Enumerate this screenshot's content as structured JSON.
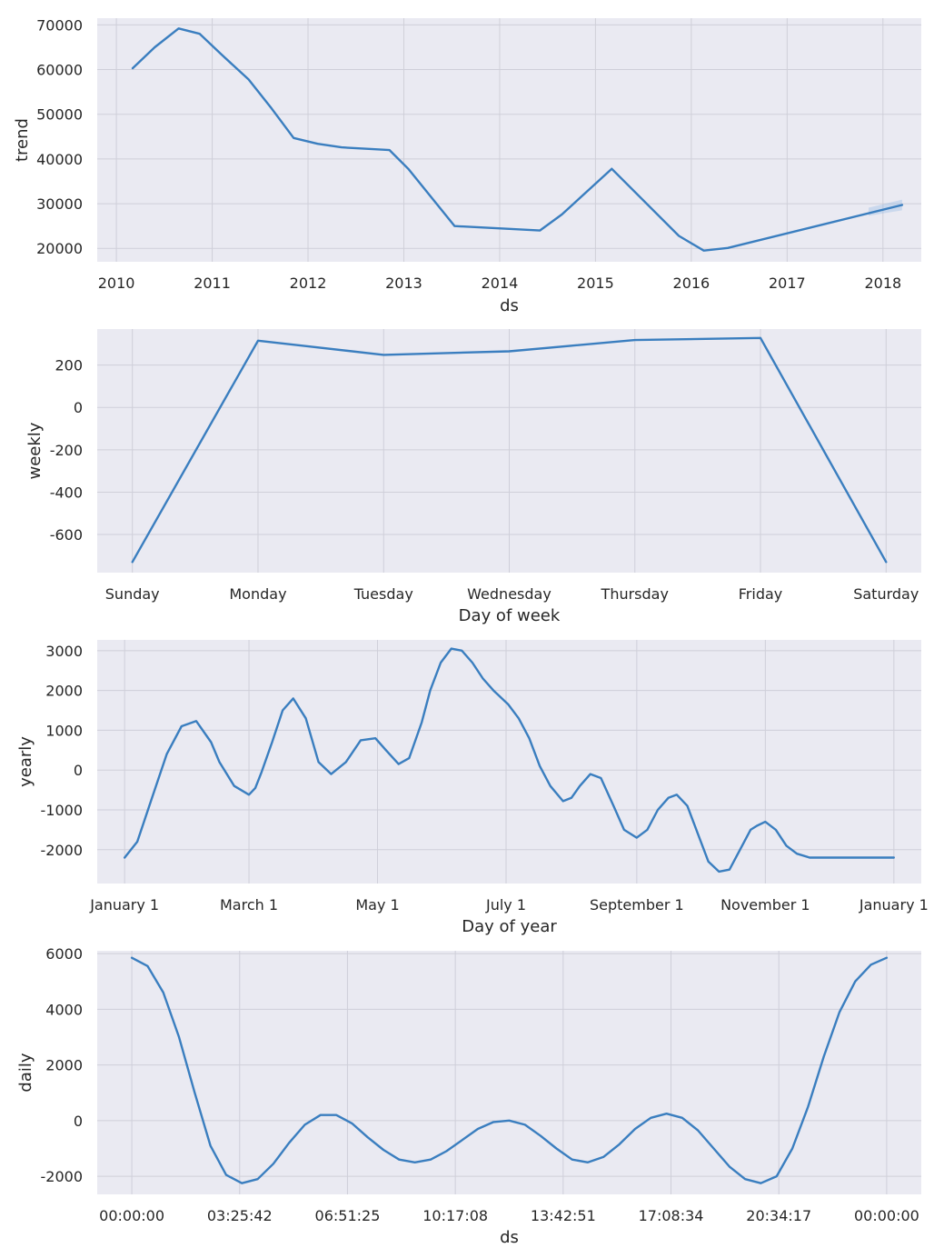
{
  "chart_data": [
    {
      "type": "line",
      "xlabel": "ds",
      "ylabel": "trend",
      "xlim": [
        2009.8,
        2018.4
      ],
      "ylim": [
        17000,
        71500
      ],
      "x_ticks": [
        2010,
        2011,
        2012,
        2013,
        2014,
        2015,
        2016,
        2017,
        2018
      ],
      "x_tick_labels": [
        "2010",
        "2011",
        "2012",
        "2013",
        "2014",
        "2015",
        "2016",
        "2017",
        "2018"
      ],
      "y_ticks": [
        20000,
        30000,
        40000,
        50000,
        60000,
        70000
      ],
      "y_tick_labels": [
        "20000",
        "30000",
        "40000",
        "50000",
        "60000",
        "70000"
      ],
      "grid": true,
      "series": [
        {
          "x": [
            2010.17,
            2010.4,
            2010.65,
            2010.87,
            2011.1,
            2011.38,
            2011.62,
            2011.85,
            2012.1,
            2012.35,
            2012.85,
            2013.05,
            2013.53,
            2014.42,
            2014.65,
            2015.17,
            2015.87,
            2016.13,
            2016.38,
            2018.2
          ],
          "y": [
            60300,
            65000,
            69200,
            68000,
            63300,
            57800,
            51300,
            44700,
            43400,
            42600,
            42000,
            37700,
            25000,
            24000,
            27600,
            37800,
            22800,
            19500,
            20100,
            29700
          ]
        }
      ],
      "uncertainty_band": {
        "x": [
          2017.85,
          2018.2
        ],
        "lower": [
          27300,
          28500
        ],
        "upper": [
          29100,
          30900
        ]
      }
    },
    {
      "type": "line",
      "xlabel": "Day of week",
      "ylabel": "weekly",
      "xlim": [
        -0.28,
        6.28
      ],
      "ylim": [
        -780,
        370
      ],
      "x_ticks": [
        0,
        1,
        2,
        3,
        4,
        5,
        6
      ],
      "x_tick_labels": [
        "Sunday",
        "Monday",
        "Tuesday",
        "Wednesday",
        "Thursday",
        "Friday",
        "Saturday"
      ],
      "y_ticks": [
        -600,
        -400,
        -200,
        0,
        200
      ],
      "y_tick_labels": [
        "-600",
        "-400",
        "-200",
        "0",
        "200"
      ],
      "grid": true,
      "series": [
        {
          "x": [
            0,
            1,
            2,
            3,
            4,
            5,
            6
          ],
          "y": [
            -730,
            315,
            248,
            265,
            318,
            328,
            -730
          ]
        }
      ]
    },
    {
      "type": "line",
      "xlabel": "Day of year",
      "ylabel": "yearly",
      "xlim": [
        -13,
        378
      ],
      "ylim": [
        -2850,
        3270
      ],
      "x_ticks": [
        0,
        59,
        120,
        181,
        243,
        304,
        365
      ],
      "x_tick_labels": [
        "January 1",
        "March 1",
        "May 1",
        "July 1",
        "September 1",
        "November 1",
        "January 1"
      ],
      "y_ticks": [
        -2000,
        -1000,
        0,
        1000,
        2000,
        3000
      ],
      "y_tick_labels": [
        "-2000",
        "-1000",
        "0",
        "1000",
        "2000",
        "3000"
      ],
      "grid": true,
      "series": [
        {
          "x": [
            0,
            6,
            13,
            20,
            27,
            34,
            41,
            45,
            52,
            59,
            62,
            65,
            70,
            75,
            80,
            86,
            92,
            98,
            105,
            112,
            119,
            124,
            130,
            135,
            141,
            145,
            150,
            155,
            160,
            165,
            170,
            175,
            179,
            182,
            187,
            192,
            197,
            202,
            208,
            212,
            216,
            221,
            226,
            232,
            237,
            243,
            248,
            253,
            258,
            262,
            267,
            272,
            277,
            282,
            287,
            292,
            297,
            300,
            304,
            309,
            314,
            319,
            325,
            330,
            336,
            341,
            346,
            351,
            356,
            361,
            365
          ],
          "y": [
            -2200,
            -1800,
            -700,
            400,
            1100,
            1230,
            700,
            200,
            -400,
            -620,
            -450,
            -50,
            700,
            1500,
            1800,
            1300,
            200,
            -100,
            200,
            750,
            800,
            500,
            150,
            300,
            1200,
            2000,
            2700,
            3050,
            3000,
            2700,
            2300,
            2000,
            1800,
            1650,
            1300,
            800,
            100,
            -400,
            -780,
            -700,
            -400,
            -100,
            -200,
            -900,
            -1500,
            -1700,
            -1500,
            -1000,
            -700,
            -620,
            -900,
            -1600,
            -2300,
            -2550,
            -2500,
            -2000,
            -1500,
            -1400,
            -1300,
            -1500,
            -1900,
            -2100,
            -2200,
            -2200,
            -2200,
            -2200,
            -2200,
            -2200,
            -2200,
            -2200,
            -2200
          ]
        }
      ]
    },
    {
      "type": "line",
      "xlabel": "ds",
      "ylabel": "daily",
      "xlim": [
        -1.1,
        25.1
      ],
      "ylim": [
        -2650,
        6100
      ],
      "x_ticks": [
        0,
        3.4286,
        6.8571,
        10.2857,
        13.7143,
        17.1429,
        20.5714,
        24
      ],
      "x_tick_labels": [
        "00:00:00",
        "03:25:42",
        "06:51:25",
        "10:17:08",
        "13:42:51",
        "17:08:34",
        "20:34:17",
        "00:00:00"
      ],
      "y_ticks": [
        -2000,
        0,
        2000,
        4000,
        6000
      ],
      "y_tick_labels": [
        "-2000",
        "0",
        "2000",
        "4000",
        "6000"
      ],
      "grid": true,
      "series": [
        {
          "x": [
            0,
            0.5,
            1,
            1.5,
            2,
            2.5,
            3,
            3.5,
            4,
            4.5,
            5,
            5.5,
            6,
            6.5,
            7,
            7.5,
            8,
            8.5,
            9,
            9.5,
            10,
            10.5,
            11,
            11.5,
            12,
            12.5,
            13,
            13.5,
            14,
            14.5,
            15,
            15.5,
            16,
            16.5,
            17,
            17.5,
            18,
            18.5,
            19,
            19.5,
            20,
            20.5,
            21,
            21.5,
            22,
            22.5,
            23,
            23.5,
            24
          ],
          "y": [
            5850,
            5550,
            4600,
            3000,
            1000,
            -900,
            -1950,
            -2250,
            -2100,
            -1550,
            -800,
            -150,
            200,
            200,
            -100,
            -600,
            -1050,
            -1400,
            -1500,
            -1400,
            -1100,
            -700,
            -300,
            -50,
            0,
            -150,
            -550,
            -1000,
            -1400,
            -1500,
            -1300,
            -850,
            -300,
            100,
            250,
            100,
            -350,
            -1000,
            -1650,
            -2100,
            -2250,
            -2000,
            -1000,
            500,
            2300,
            3900,
            5000,
            5600,
            5850
          ]
        }
      ]
    }
  ],
  "colors": {
    "line": "#3a7ebf",
    "band": "#8eb8e5",
    "background": "#eaeaf2",
    "grid": "#cfcfd9",
    "text": "#262626"
  }
}
